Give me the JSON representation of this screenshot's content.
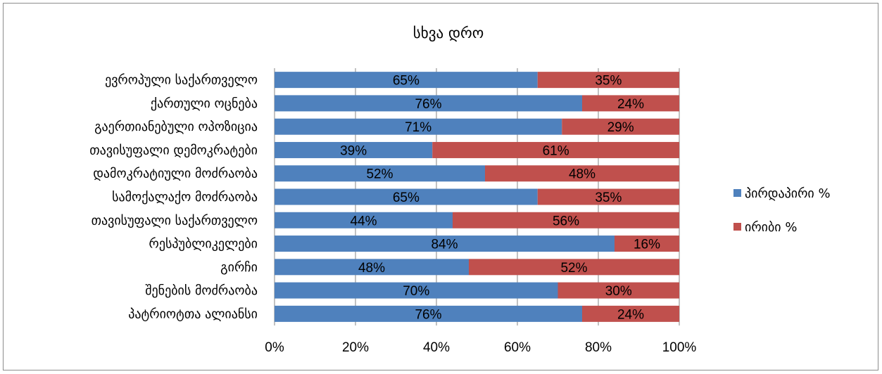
{
  "chart_data": {
    "type": "bar",
    "orientation": "horizontal",
    "stacked": "percent",
    "title": "სხვა დრო",
    "categories": [
      "ევროპული საქართველო",
      "ქართული ოცნება",
      "გაერთიანებული ოპოზიცია",
      "თავისუფალი დემოკრატები",
      "დამოკრატიული მოძრაობა",
      "სამოქალაქო მოძრაობა",
      "თავისუფალი საქართველო",
      "რესპუბლიკელები",
      "გირჩი",
      "შენების მოძრაობა",
      "პატრიოტთა ალიანსი"
    ],
    "series": [
      {
        "name": "პირდაპირი %",
        "color": "#4f81bd",
        "values": [
          65,
          76,
          71,
          39,
          52,
          65,
          44,
          84,
          48,
          70,
          76
        ],
        "labels": [
          "65%",
          "76%",
          "71%",
          "39%",
          "52%",
          "65%",
          "44%",
          "84%",
          "48%",
          "70%",
          "76%"
        ]
      },
      {
        "name": "ირიბი %",
        "color": "#c0504d",
        "values": [
          35,
          24,
          29,
          61,
          48,
          35,
          56,
          16,
          52,
          30,
          24
        ],
        "labels": [
          "35%",
          "24%",
          "29%",
          "61%",
          "48%",
          "35%",
          "56%",
          "16%",
          "52%",
          "30%",
          "24%"
        ]
      }
    ],
    "xlim": [
      0,
      100
    ],
    "xticks": [
      "0%",
      "20%",
      "40%",
      "60%",
      "80%",
      "100%"
    ],
    "grid": true,
    "legend": "right"
  }
}
